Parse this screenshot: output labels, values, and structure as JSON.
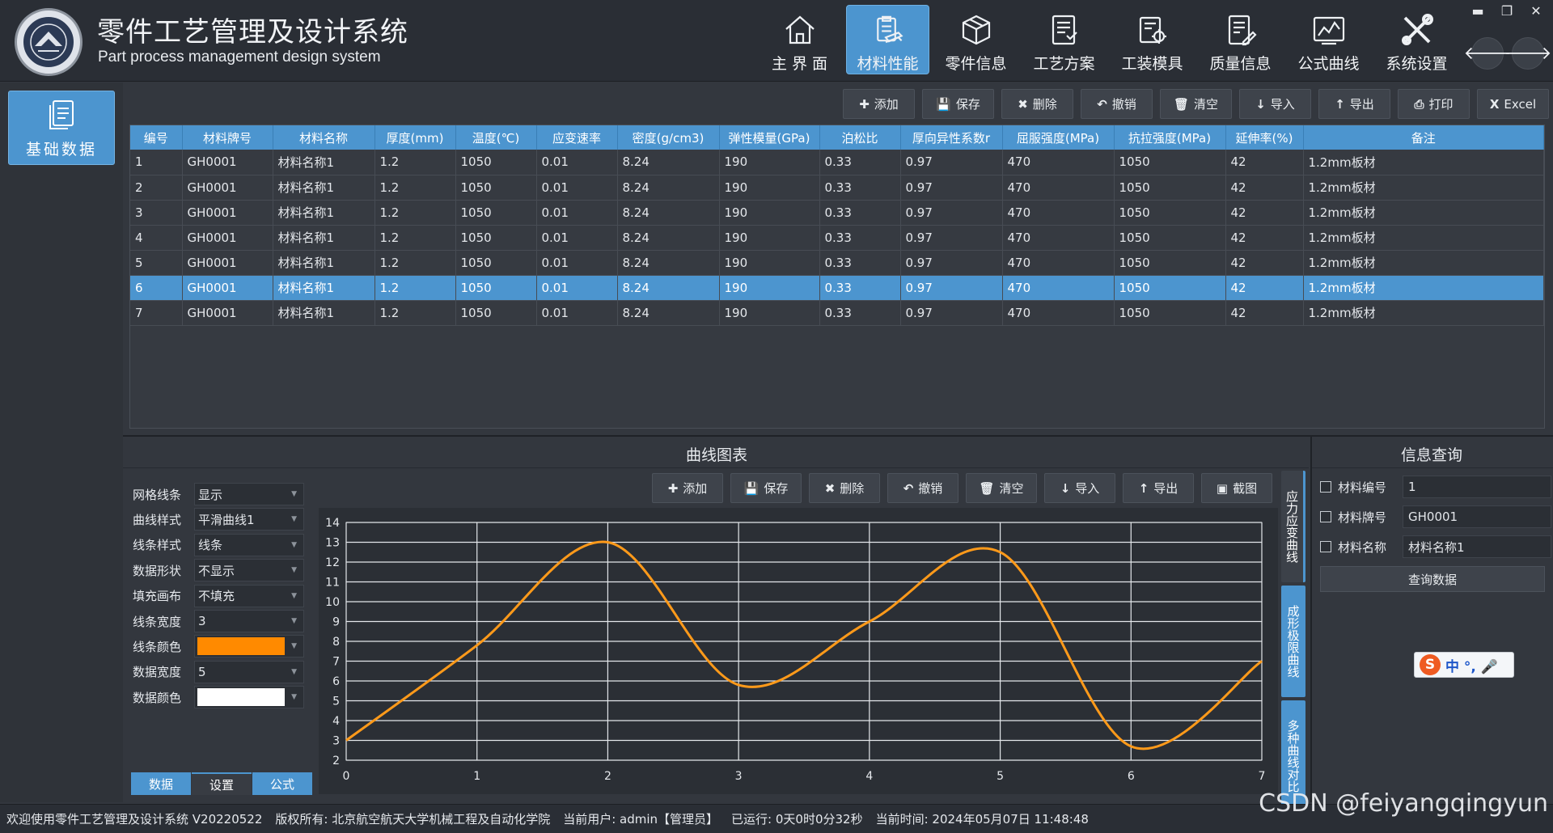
{
  "app": {
    "title_cn": "零件工艺管理及设计系统",
    "title_en": "Part process management design system"
  },
  "nav": [
    {
      "label": "主 界 面",
      "icon": "home-icon"
    },
    {
      "label": "材料性能",
      "icon": "clipboard-stack-icon",
      "active": true
    },
    {
      "label": "零件信息",
      "icon": "box-icon"
    },
    {
      "label": "工艺方案",
      "icon": "document-list-icon"
    },
    {
      "label": "工装模具",
      "icon": "gear-document-icon"
    },
    {
      "label": "质量信息",
      "icon": "document-edit-icon"
    },
    {
      "label": "公式曲线",
      "icon": "line-chart-icon"
    },
    {
      "label": "系统设置",
      "icon": "tools-icon"
    }
  ],
  "window": {
    "min": "▬",
    "restore": "❐",
    "close": "✕"
  },
  "side": {
    "button": "基础数据"
  },
  "toolbar": [
    {
      "label": "添加",
      "icon": "plus-icon",
      "glyph": "✚"
    },
    {
      "label": "保存",
      "icon": "save-icon",
      "glyph": "💾"
    },
    {
      "label": "删除",
      "icon": "delete-icon",
      "glyph": "✖"
    },
    {
      "label": "撤销",
      "icon": "undo-icon",
      "glyph": "↶"
    },
    {
      "label": "清空",
      "icon": "trash-icon",
      "glyph": "🗑"
    },
    {
      "label": "导入",
      "icon": "import-icon",
      "glyph": "↓"
    },
    {
      "label": "导出",
      "icon": "export-icon",
      "glyph": "↑"
    },
    {
      "label": "打印",
      "icon": "print-icon",
      "glyph": "⎙"
    },
    {
      "label": "Excel",
      "icon": "excel-icon",
      "glyph": "X"
    }
  ],
  "table": {
    "columns": [
      "编号",
      "材料牌号",
      "材料名称",
      "厚度(mm)",
      "温度(℃)",
      "应变速率",
      "密度(g/cm3)",
      "弹性模量(GPa)",
      "泊松比",
      "厚向异性系数r",
      "屈服强度(MPa)",
      "抗拉强度(MPa)",
      "延伸率(%)",
      "备注"
    ],
    "rows": [
      [
        "1",
        "GH0001",
        "材料名称1",
        "1.2",
        "1050",
        "0.01",
        "8.24",
        "190",
        "0.33",
        "0.97",
        "470",
        "1050",
        "42",
        "1.2mm板材"
      ],
      [
        "2",
        "GH0001",
        "材料名称1",
        "1.2",
        "1050",
        "0.01",
        "8.24",
        "190",
        "0.33",
        "0.97",
        "470",
        "1050",
        "42",
        "1.2mm板材"
      ],
      [
        "3",
        "GH0001",
        "材料名称1",
        "1.2",
        "1050",
        "0.01",
        "8.24",
        "190",
        "0.33",
        "0.97",
        "470",
        "1050",
        "42",
        "1.2mm板材"
      ],
      [
        "4",
        "GH0001",
        "材料名称1",
        "1.2",
        "1050",
        "0.01",
        "8.24",
        "190",
        "0.33",
        "0.97",
        "470",
        "1050",
        "42",
        "1.2mm板材"
      ],
      [
        "5",
        "GH0001",
        "材料名称1",
        "1.2",
        "1050",
        "0.01",
        "8.24",
        "190",
        "0.33",
        "0.97",
        "470",
        "1050",
        "42",
        "1.2mm板材"
      ],
      [
        "6",
        "GH0001",
        "材料名称1",
        "1.2",
        "1050",
        "0.01",
        "8.24",
        "190",
        "0.33",
        "0.97",
        "470",
        "1050",
        "42",
        "1.2mm板材"
      ],
      [
        "7",
        "GH0001",
        "材料名称1",
        "1.2",
        "1050",
        "0.01",
        "8.24",
        "190",
        "0.33",
        "0.97",
        "470",
        "1050",
        "42",
        "1.2mm板材"
      ]
    ],
    "selected_row": 5
  },
  "chart_panel": {
    "title": "曲线图表",
    "toolbar": [
      {
        "label": "添加",
        "icon": "plus-icon",
        "glyph": "✚"
      },
      {
        "label": "保存",
        "icon": "save-icon",
        "glyph": "💾"
      },
      {
        "label": "删除",
        "icon": "delete-icon",
        "glyph": "✖"
      },
      {
        "label": "撤销",
        "icon": "undo-icon",
        "glyph": "↶"
      },
      {
        "label": "清空",
        "icon": "trash-icon",
        "glyph": "🗑"
      },
      {
        "label": "导入",
        "icon": "import-icon",
        "glyph": "↓"
      },
      {
        "label": "导出",
        "icon": "export-icon",
        "glyph": "↑"
      },
      {
        "label": "截图",
        "icon": "screenshot-icon",
        "glyph": "▣"
      }
    ],
    "vtabs": [
      "应力应变曲线",
      "成形极限曲线",
      "多种曲线对比"
    ],
    "settings": [
      {
        "label": "网格线条",
        "value": "显示"
      },
      {
        "label": "曲线样式",
        "value": "平滑曲线1"
      },
      {
        "label": "线条样式",
        "value": "线条"
      },
      {
        "label": "数据形状",
        "value": "不显示"
      },
      {
        "label": "填充画布",
        "value": "不填充"
      },
      {
        "label": "线条宽度",
        "value": "3"
      },
      {
        "label": "线条颜色",
        "value": "",
        "color": "#ff8a00"
      },
      {
        "label": "数据宽度",
        "value": "5"
      },
      {
        "label": "数据颜色",
        "value": "",
        "color": "#ffffff"
      }
    ],
    "tabs": [
      "数据",
      "设置",
      "公式"
    ],
    "active_tab": 1
  },
  "chart_data": {
    "type": "line",
    "x": [
      0,
      1,
      2,
      3,
      4,
      5,
      6,
      7
    ],
    "series": [
      {
        "values": [
          3,
          7.8,
          13,
          5.8,
          9,
          12.5,
          2.7,
          7
        ],
        "color": "#ff9a1a"
      }
    ],
    "xlim": [
      0,
      7
    ],
    "ylim": [
      2,
      14
    ],
    "xticks": [
      0,
      1,
      2,
      3,
      4,
      5,
      6,
      7
    ],
    "yticks": [
      2,
      3,
      4,
      5,
      6,
      7,
      8,
      9,
      10,
      11,
      12,
      13,
      14
    ],
    "grid": true,
    "smooth": true
  },
  "query": {
    "title": "信息查询",
    "fields": [
      {
        "label": "材料编号",
        "value": "1"
      },
      {
        "label": "材料牌号",
        "value": "GH0001"
      },
      {
        "label": "材料名称",
        "value": "材料名称1"
      }
    ],
    "button": "查询数据"
  },
  "ime": {
    "s": "S",
    "text": "中 °, 🎤"
  },
  "status": [
    "欢迎使用零件工艺管理及设计系统 V20220522",
    "版权所有: 北京航空航天大学机械工程及自动化学院",
    "当前用户: admin【管理员】",
    "已运行: 0天0时0分32秒",
    "当前时间: 2024年05月07日 11:48:48"
  ],
  "watermark": "CSDN @feiyangqingyun"
}
